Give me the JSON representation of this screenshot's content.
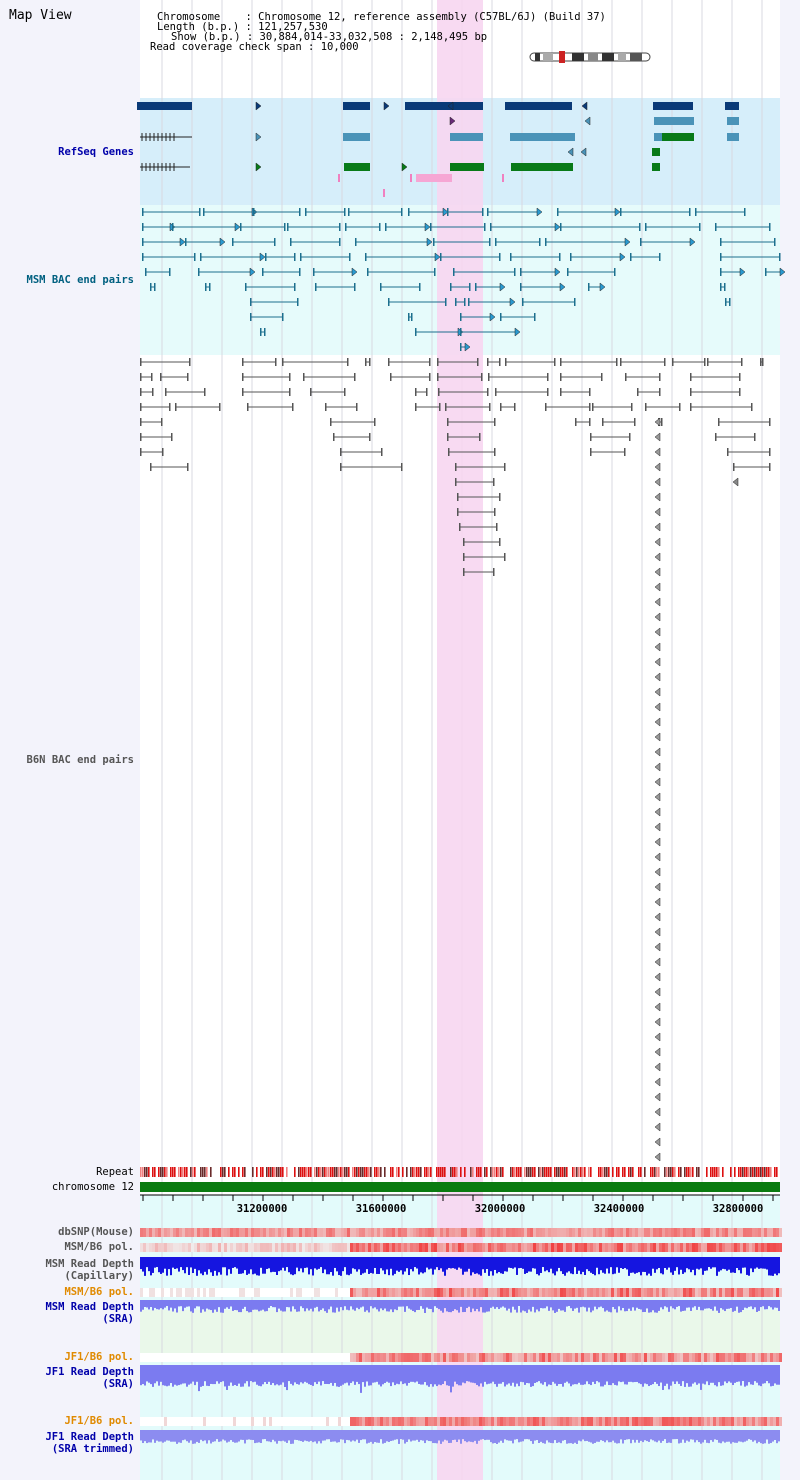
{
  "page": {
    "title": "Map View"
  },
  "info": {
    "chromosome_key": "Chromosome",
    "chromosome_value": "Chromosome 12, reference assembly (C57BL/6J) (Build 37)",
    "length_key": "Length (b.p.)",
    "length_value": "121,257,530",
    "show_key": "Show (b.p.)",
    "show_value": "30,884,014-33,032,508 : 2,148,495 bp",
    "read_cov_key": "Read coverage check span",
    "read_cov_value": "10,000"
  },
  "tracks": {
    "refseq": "RefSeq Genes",
    "msm_bac": "MSM BAC end pairs",
    "b6n_bac": "B6N BAC end pairs",
    "repeat": "Repeat",
    "chromosome": "chromosome 12",
    "dbsnp": "dbSNP(Mouse)",
    "msm_b6_pol": "MSM/B6 pol.",
    "msm_depth_cap_1": "MSM Read Depth",
    "msm_depth_cap_2": "(Capillary)",
    "msm_b6_pol2": "MSM/B6 pol.",
    "msm_depth_sra_1": "MSM Read Depth",
    "msm_depth_sra_2": "(SRA)",
    "jf1_b6_pol": "JF1/B6 pol.",
    "jf1_depth_sra_1": "JF1 Read Depth",
    "jf1_depth_sra_2": "(SRA)",
    "jf1_b6_pol2": "JF1/B6 pol.",
    "jf1_depth_trim_1": "JF1 Read Depth",
    "jf1_depth_trim_2": "(SRA trimmed)"
  },
  "scale": {
    "ticks": [
      "31200000",
      "31600000",
      "32000000",
      "32400000",
      "32800000"
    ]
  },
  "colors": {
    "refseq_label": "#0000aa",
    "msm_bac_label": "#006080",
    "b6n_bac_label": "#555555",
    "refseq_bg": "#d6eefa",
    "msm_bg": "#e6fbfb",
    "highlight": "#f7d6f1",
    "gene_dark": "#0a3a78",
    "gene_mid": "#4a93b8",
    "gene_green": "#087a18",
    "msm_line": "#1c6f8e",
    "b6n_line": "#555555",
    "repeat_red": "#dd1010",
    "repeat_dark": "#6a2a2a",
    "chrom_green": "#0a7b10",
    "depth_blue": "#1515e0",
    "depth_light_blue": "#7b7bf0",
    "jf1_label": "#e08a00",
    "pol_red": "#ee3333"
  }
}
